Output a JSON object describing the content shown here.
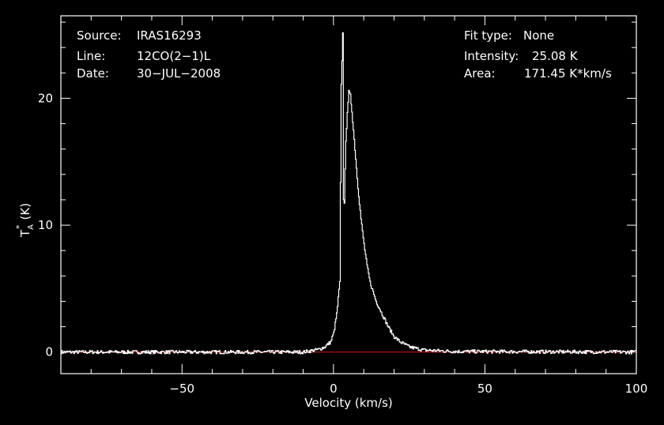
{
  "header": {
    "left": [
      {
        "label": "Source:",
        "value": "IRAS16293"
      },
      {
        "label": "Line:",
        "value": "12CO(2−1)L"
      },
      {
        "label": "Date:",
        "value": "30−JUL−2008"
      }
    ],
    "right": [
      {
        "label": "Fit type:",
        "value": "None"
      },
      {
        "label": "Intensity:",
        "value": "25.08 K"
      },
      {
        "label": "Area:",
        "value": "171.45 K*km/s"
      }
    ]
  },
  "chart_data": {
    "type": "line",
    "xlabel": "Velocity (km/s)",
    "ylabel_main": "T",
    "ylabel_sub": "A",
    "ylabel_sup": "*",
    "ylabel_unit": "(K)",
    "xlim": [
      -90,
      100
    ],
    "ylim": [
      -1.7,
      26.5
    ],
    "x_ticks": [
      -50,
      0,
      50,
      100
    ],
    "x_tick_labels": [
      "−50",
      "0",
      "50",
      "100"
    ],
    "y_ticks": [
      0,
      10,
      20
    ],
    "y_tick_labels": [
      "0",
      "10",
      "20"
    ],
    "baseline": {
      "y": 0,
      "color": "#d01010"
    },
    "colors": {
      "spectrum": "#ffffff",
      "frame": "#ffffff",
      "background": "#000000"
    },
    "series": [
      {
        "x": [
          -90,
          -40,
          -10,
          -5,
          -3,
          -1,
          0,
          1,
          2,
          2.5,
          3,
          3.3,
          3.6,
          4,
          4.5,
          5,
          5.5,
          6,
          7,
          8,
          9,
          10,
          11,
          12,
          14,
          16,
          18,
          20,
          22,
          25,
          30,
          40,
          100
        ],
        "y": [
          0,
          0,
          0,
          0.2,
          0.4,
          0.8,
          1.5,
          3.0,
          5.5,
          21.0,
          25.1,
          9.5,
          13.0,
          16.5,
          19.0,
          20.5,
          20.2,
          19.0,
          16.0,
          13.0,
          10.5,
          8.5,
          6.8,
          5.5,
          4.0,
          3.0,
          2.0,
          1.2,
          0.8,
          0.4,
          0.15,
          0.05,
          0
        ]
      }
    ]
  }
}
